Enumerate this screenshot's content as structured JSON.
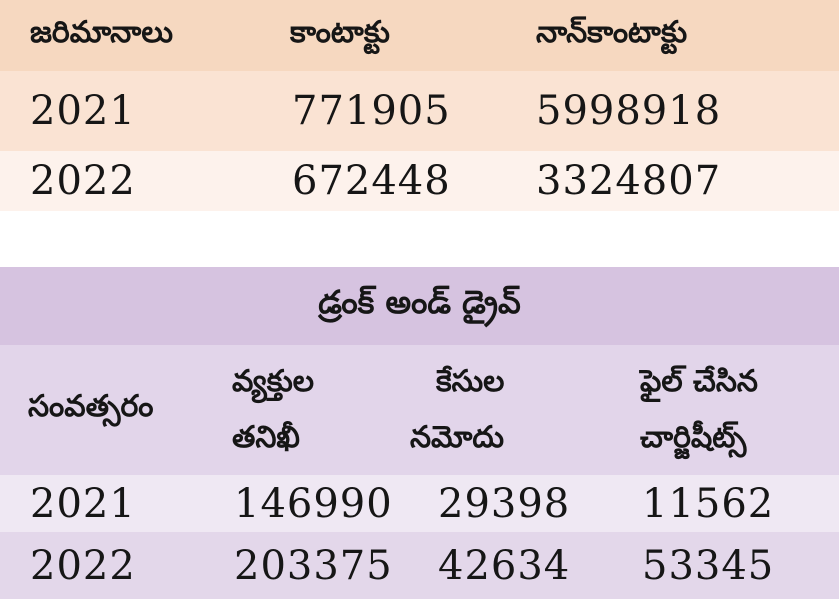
{
  "fines_table": {
    "headers": [
      "జరిమానాలు",
      "కాంటాక్టు",
      "నాన్‌కాంటాక్టు"
    ],
    "rows": [
      [
        "2021",
        "771905",
        "5998918"
      ],
      [
        "2022",
        "672448",
        "3324807"
      ]
    ],
    "colors": {
      "header_bg": "#f6d8c0",
      "row1_bg": "#fae3d3",
      "row2_bg": "#fdf2ec"
    }
  },
  "drunk_drive_table": {
    "title": "డ్రంక్ అండ్ డ్రైవ్",
    "headers": [
      {
        "line1": "సంవత్సరం",
        "line2": ""
      },
      {
        "line1": "వ్యక్తుల",
        "line2": "తనిఖీ"
      },
      {
        "line1": "కేసుల",
        "line2": "నమోదు"
      },
      {
        "line1": "ఫైల్ చేసిన",
        "line2": "చార్జిషీట్స్"
      }
    ],
    "rows": [
      [
        "2021",
        "146990",
        "29398",
        "11562"
      ],
      [
        "2022",
        "203375",
        "42634",
        "53345"
      ]
    ],
    "colors": {
      "title_bg": "#d6c3e0",
      "header_bg": "#e2d5ea",
      "row1_bg": "#efe8f3",
      "row2_bg": "#e3d7ea"
    }
  }
}
